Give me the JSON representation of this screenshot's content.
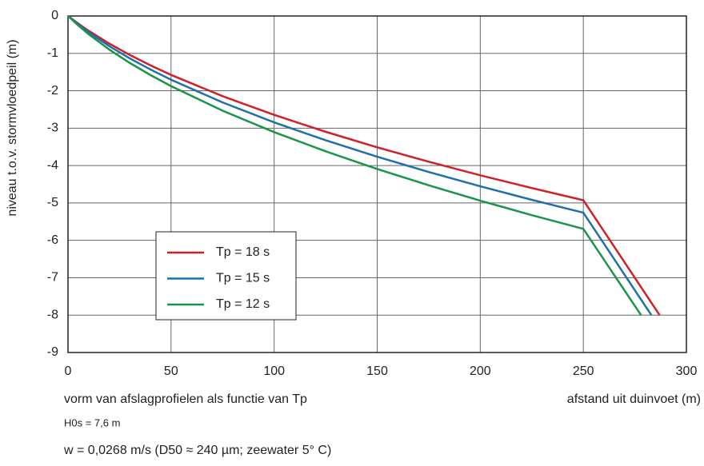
{
  "chart_data": {
    "type": "line",
    "y_label": "niveau t.o.v. stormvloedpeil (m)",
    "x_label": "afstand uit duinvoet (m)",
    "notes": [
      "vorm van afslagprofielen als functie van Tp",
      "H0s = 7,6 m",
      "w = 0,0268 m/s (D50 ≈ 240 µm; zeewater 5° C)"
    ],
    "xlim": [
      0,
      300
    ],
    "ylim": [
      -9,
      0
    ],
    "xticks": [
      0,
      50,
      100,
      150,
      200,
      250,
      300
    ],
    "yticks": [
      0,
      -1,
      -2,
      -3,
      -4,
      -5,
      -6,
      -7,
      -8,
      -9
    ],
    "grid": true,
    "legend": "lower-left",
    "series": [
      {
        "name": "Tp = 18 s",
        "color": "#d0202a",
        "x": [
          0,
          5,
          10,
          20,
          30,
          40,
          50,
          75,
          100,
          125,
          150,
          175,
          200,
          225,
          250,
          287
        ],
        "values": [
          0,
          -0.204,
          -0.395,
          -0.738,
          -1.043,
          -1.319,
          -1.575,
          -2.145,
          -2.645,
          -3.097,
          -3.512,
          -3.898,
          -4.26,
          -4.602,
          -4.927,
          -8
        ]
      },
      {
        "name": "Tp = 15 s",
        "color": "#1f6fad",
        "x": [
          0,
          5,
          10,
          20,
          30,
          40,
          50,
          75,
          100,
          125,
          150,
          175,
          200,
          225,
          250,
          283
        ],
        "values": [
          0,
          -0.225,
          -0.434,
          -0.806,
          -1.134,
          -1.431,
          -1.704,
          -2.312,
          -2.845,
          -3.324,
          -3.764,
          -4.172,
          -4.555,
          -4.917,
          -5.26,
          -8
        ]
      },
      {
        "name": "Tp = 12 s",
        "color": "#1a9448",
        "x": [
          0,
          5,
          10,
          20,
          30,
          40,
          50,
          75,
          100,
          125,
          150,
          175,
          200,
          225,
          250,
          278
        ],
        "values": [
          0,
          -0.254,
          -0.487,
          -0.897,
          -1.256,
          -1.579,
          -1.876,
          -2.533,
          -3.106,
          -3.62,
          -4.092,
          -4.529,
          -4.94,
          -5.327,
          -5.694,
          -8
        ]
      }
    ]
  }
}
